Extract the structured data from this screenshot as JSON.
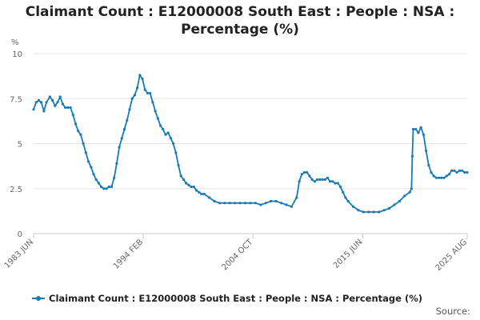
{
  "title_line1": "Claimant Count : E12000008 South East : People : NSA :",
  "title_line2": "Percentage (%)",
  "source_label": "Source:",
  "colors": {
    "series": "#1a7ab5",
    "grid": "#e6e6e6",
    "axis": "#cccccc",
    "tick_text": "#666666"
  },
  "chart_data": {
    "type": "line",
    "title": "Claimant Count : E12000008 South East : People : NSA : Percentage (%)",
    "ylabel": "%",
    "xlabel": "",
    "ylim": [
      0,
      10
    ],
    "y_ticks": [
      0,
      2.5,
      5,
      7.5,
      10
    ],
    "y_tick_labels": [
      "0",
      "2.5",
      "5",
      "7.5",
      "10"
    ],
    "x_ticks": [
      {
        "label": "1983 JUN",
        "x": "1983-06"
      },
      {
        "label": "1994 FEB",
        "x": "1994-02"
      },
      {
        "label": "2004 OCT",
        "x": "2004-10"
      },
      {
        "label": "2015 JUN",
        "x": "2015-06"
      },
      {
        "label": "2025 AUG",
        "x": "2025-08"
      }
    ],
    "x_range": [
      "1983-06",
      "2025-08"
    ],
    "grid": true,
    "legend_position": "bottom",
    "series": [
      {
        "name": "Claimant Count : E12000008 South East : People : NSA : Percentage (%)",
        "points": [
          [
            "1983-06",
            6.9
          ],
          [
            "1983-09",
            7.3
          ],
          [
            "1983-12",
            7.4
          ],
          [
            "1984-03",
            7.3
          ],
          [
            "1984-06",
            6.8
          ],
          [
            "1984-09",
            7.3
          ],
          [
            "1985-01",
            7.6
          ],
          [
            "1985-04",
            7.4
          ],
          [
            "1985-07",
            7.1
          ],
          [
            "1985-10",
            7.3
          ],
          [
            "1986-01",
            7.6
          ],
          [
            "1986-04",
            7.2
          ],
          [
            "1986-07",
            7.0
          ],
          [
            "1986-10",
            7.0
          ],
          [
            "1987-01",
            7.0
          ],
          [
            "1987-04",
            6.6
          ],
          [
            "1987-07",
            6.1
          ],
          [
            "1987-10",
            5.7
          ],
          [
            "1988-01",
            5.5
          ],
          [
            "1988-04",
            5.0
          ],
          [
            "1988-07",
            4.5
          ],
          [
            "1988-10",
            4.0
          ],
          [
            "1989-01",
            3.7
          ],
          [
            "1989-04",
            3.3
          ],
          [
            "1989-07",
            3.0
          ],
          [
            "1989-10",
            2.8
          ],
          [
            "1990-01",
            2.6
          ],
          [
            "1990-04",
            2.5
          ],
          [
            "1990-07",
            2.5
          ],
          [
            "1990-10",
            2.6
          ],
          [
            "1991-01",
            2.6
          ],
          [
            "1991-04",
            3.1
          ],
          [
            "1991-07",
            3.9
          ],
          [
            "1991-10",
            4.8
          ],
          [
            "1992-01",
            5.3
          ],
          [
            "1992-04",
            5.8
          ],
          [
            "1992-07",
            6.3
          ],
          [
            "1992-10",
            6.9
          ],
          [
            "1993-01",
            7.5
          ],
          [
            "1993-04",
            7.7
          ],
          [
            "1993-07",
            8.1
          ],
          [
            "1993-10",
            8.8
          ],
          [
            "1994-01",
            8.6
          ],
          [
            "1994-04",
            8.0
          ],
          [
            "1994-07",
            7.8
          ],
          [
            "1994-10",
            7.8
          ],
          [
            "1995-01",
            7.3
          ],
          [
            "1995-04",
            6.8
          ],
          [
            "1995-07",
            6.4
          ],
          [
            "1995-10",
            6.0
          ],
          [
            "1996-01",
            5.8
          ],
          [
            "1996-04",
            5.5
          ],
          [
            "1996-07",
            5.6
          ],
          [
            "1996-10",
            5.3
          ],
          [
            "1997-01",
            5.0
          ],
          [
            "1997-04",
            4.5
          ],
          [
            "1997-07",
            3.8
          ],
          [
            "1997-10",
            3.2
          ],
          [
            "1998-01",
            3.0
          ],
          [
            "1998-04",
            2.8
          ],
          [
            "1998-07",
            2.7
          ],
          [
            "1998-10",
            2.6
          ],
          [
            "1999-01",
            2.6
          ],
          [
            "1999-04",
            2.4
          ],
          [
            "1999-07",
            2.3
          ],
          [
            "1999-10",
            2.2
          ],
          [
            "2000-01",
            2.2
          ],
          [
            "2000-07",
            2.0
          ],
          [
            "2001-01",
            1.8
          ],
          [
            "2001-07",
            1.7
          ],
          [
            "2002-01",
            1.7
          ],
          [
            "2002-07",
            1.7
          ],
          [
            "2003-01",
            1.7
          ],
          [
            "2003-07",
            1.7
          ],
          [
            "2004-01",
            1.7
          ],
          [
            "2004-07",
            1.7
          ],
          [
            "2005-01",
            1.7
          ],
          [
            "2005-07",
            1.6
          ],
          [
            "2006-01",
            1.7
          ],
          [
            "2006-07",
            1.8
          ],
          [
            "2007-01",
            1.8
          ],
          [
            "2007-07",
            1.7
          ],
          [
            "2008-01",
            1.6
          ],
          [
            "2008-07",
            1.5
          ],
          [
            "2009-01",
            2.0
          ],
          [
            "2009-04",
            2.9
          ],
          [
            "2009-07",
            3.3
          ],
          [
            "2009-10",
            3.4
          ],
          [
            "2010-01",
            3.4
          ],
          [
            "2010-04",
            3.2
          ],
          [
            "2010-07",
            3.0
          ],
          [
            "2010-10",
            2.9
          ],
          [
            "2011-01",
            3.0
          ],
          [
            "2011-04",
            3.0
          ],
          [
            "2011-07",
            3.0
          ],
          [
            "2011-10",
            3.0
          ],
          [
            "2012-01",
            3.1
          ],
          [
            "2012-04",
            2.9
          ],
          [
            "2012-07",
            2.9
          ],
          [
            "2012-10",
            2.8
          ],
          [
            "2013-01",
            2.8
          ],
          [
            "2013-04",
            2.6
          ],
          [
            "2013-07",
            2.3
          ],
          [
            "2013-10",
            2.0
          ],
          [
            "2014-01",
            1.8
          ],
          [
            "2014-07",
            1.5
          ],
          [
            "2015-01",
            1.3
          ],
          [
            "2015-07",
            1.2
          ],
          [
            "2016-01",
            1.2
          ],
          [
            "2016-07",
            1.2
          ],
          [
            "2017-01",
            1.2
          ],
          [
            "2017-07",
            1.3
          ],
          [
            "2018-01",
            1.4
          ],
          [
            "2018-07",
            1.6
          ],
          [
            "2019-01",
            1.8
          ],
          [
            "2019-07",
            2.1
          ],
          [
            "2020-01",
            2.3
          ],
          [
            "2020-03",
            2.5
          ],
          [
            "2020-04",
            4.3
          ],
          [
            "2020-05",
            5.8
          ],
          [
            "2020-08",
            5.8
          ],
          [
            "2020-11",
            5.6
          ],
          [
            "2021-02",
            5.9
          ],
          [
            "2021-05",
            5.5
          ],
          [
            "2021-08",
            4.6
          ],
          [
            "2021-11",
            3.8
          ],
          [
            "2022-02",
            3.4
          ],
          [
            "2022-05",
            3.2
          ],
          [
            "2022-08",
            3.1
          ],
          [
            "2022-11",
            3.1
          ],
          [
            "2023-02",
            3.1
          ],
          [
            "2023-05",
            3.1
          ],
          [
            "2023-08",
            3.2
          ],
          [
            "2023-11",
            3.3
          ],
          [
            "2024-02",
            3.5
          ],
          [
            "2024-05",
            3.5
          ],
          [
            "2024-08",
            3.4
          ],
          [
            "2024-11",
            3.5
          ],
          [
            "2025-02",
            3.5
          ],
          [
            "2025-05",
            3.4
          ],
          [
            "2025-08",
            3.4
          ]
        ]
      }
    ]
  }
}
